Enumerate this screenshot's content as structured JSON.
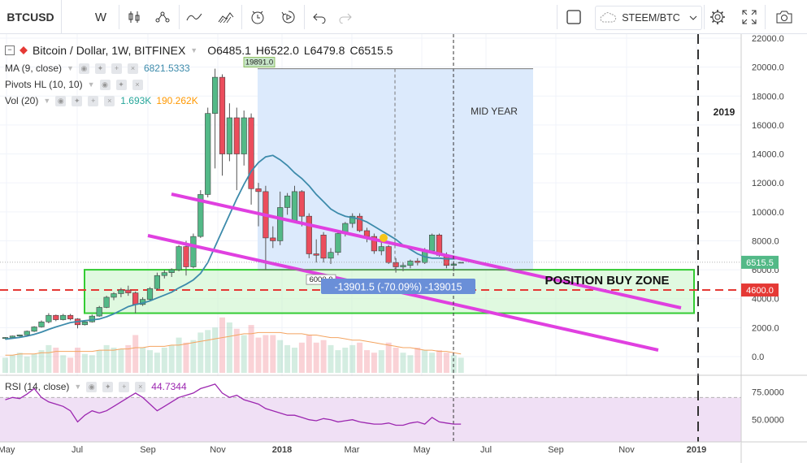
{
  "toolbar": {
    "symbol": "BTCUSD",
    "interval": "W",
    "compare_symbol": "STEEM/BTC",
    "icons": [
      "candles-icon",
      "indicators-icon",
      "line-icon",
      "area-icon",
      "alert-icon",
      "replay-icon",
      "undo-icon",
      "redo-icon",
      "square-icon",
      "compare-icon",
      "chevron-down-icon",
      "gear-icon",
      "fullscreen-icon",
      "camera-icon"
    ]
  },
  "legend": {
    "main_title": "Bitcoin / Dollar, 1W, BITFINEX",
    "ohlc": {
      "o": "O6485.1",
      "h": "H6522.0",
      "l": "L6479.8",
      "c": "C6515.5"
    },
    "ma_label": "MA (9, close)",
    "ma_value": "6821.5333",
    "pivots_label": "Pivots HL (10, 10)",
    "vol_label": "Vol (20)",
    "vol_value1": "1.693K",
    "vol_value2": "190.262K",
    "rsi_label": "RSI (14, close)",
    "rsi_value": "44.7344"
  },
  "colors": {
    "up": "#53b987",
    "down": "#eb4d5c",
    "ma": "#3d8bab",
    "channel": "#e040e0",
    "zone_fill": "#ccf5cc",
    "zone_border": "#33cc33",
    "range_fill": "#dceafc",
    "rsi": "#9c27b0",
    "rsi_band": "#ebd6f2",
    "support": "#e53935",
    "label_box": "#6a8fd8"
  },
  "chart_data": {
    "type": "candlestick",
    "ylim": [
      -500,
      22500
    ],
    "y_ticks": [
      0,
      2000,
      4000,
      6000,
      8000,
      10000,
      12000,
      14000,
      16000,
      18000,
      20000,
      22000
    ],
    "y_tick_labels": [
      "0.0",
      "2000.0",
      "4000.0",
      "6000.0",
      "8000.0",
      "10000.0",
      "12000.0",
      "14000.0",
      "16000.0",
      "18000.0",
      "20000.0",
      "22000.0"
    ],
    "x_tick_labels": [
      "May",
      "Jul",
      "Sep",
      "Nov",
      "2018",
      "Mar",
      "May",
      "Jul",
      "Sep",
      "Nov",
      "2019"
    ],
    "candles": [
      {
        "o": 1250,
        "h": 1350,
        "l": 1200,
        "c": 1320
      },
      {
        "o": 1320,
        "h": 1450,
        "l": 1300,
        "c": 1420
      },
      {
        "o": 1420,
        "h": 1520,
        "l": 1380,
        "c": 1500
      },
      {
        "o": 1500,
        "h": 1800,
        "l": 1480,
        "c": 1750
      },
      {
        "o": 1750,
        "h": 2100,
        "l": 1700,
        "c": 2050
      },
      {
        "o": 2050,
        "h": 2500,
        "l": 2000,
        "c": 2400
      },
      {
        "o": 2400,
        "h": 3000,
        "l": 2300,
        "c": 2850
      },
      {
        "o": 2850,
        "h": 2900,
        "l": 2450,
        "c": 2550
      },
      {
        "o": 2550,
        "h": 2950,
        "l": 2500,
        "c": 2850
      },
      {
        "o": 2850,
        "h": 2950,
        "l": 2500,
        "c": 2600
      },
      {
        "o": 2600,
        "h": 2650,
        "l": 1950,
        "c": 2200
      },
      {
        "o": 2200,
        "h": 2500,
        "l": 2150,
        "c": 2400
      },
      {
        "o": 2400,
        "h": 2900,
        "l": 2350,
        "c": 2800
      },
      {
        "o": 2800,
        "h": 3500,
        "l": 2750,
        "c": 3400
      },
      {
        "o": 3400,
        "h": 4200,
        "l": 3350,
        "c": 4100
      },
      {
        "o": 4100,
        "h": 4450,
        "l": 3900,
        "c": 4350
      },
      {
        "o": 4350,
        "h": 4750,
        "l": 4100,
        "c": 4600
      },
      {
        "o": 4600,
        "h": 4900,
        "l": 4200,
        "c": 4400
      },
      {
        "o": 4400,
        "h": 4500,
        "l": 3000,
        "c": 3600
      },
      {
        "o": 3600,
        "h": 4100,
        "l": 3500,
        "c": 3950
      },
      {
        "o": 3950,
        "h": 4800,
        "l": 3900,
        "c": 4700
      },
      {
        "o": 4700,
        "h": 5800,
        "l": 4600,
        "c": 5600
      },
      {
        "o": 5600,
        "h": 6000,
        "l": 5400,
        "c": 5800
      },
      {
        "o": 5800,
        "h": 6100,
        "l": 5500,
        "c": 6000
      },
      {
        "o": 6000,
        "h": 7700,
        "l": 5900,
        "c": 7600
      },
      {
        "o": 7600,
        "h": 8000,
        "l": 5600,
        "c": 6200
      },
      {
        "o": 6200,
        "h": 8500,
        "l": 6100,
        "c": 8300
      },
      {
        "o": 8300,
        "h": 11500,
        "l": 8200,
        "c": 11200
      },
      {
        "o": 11200,
        "h": 17200,
        "l": 11000,
        "c": 16800
      },
      {
        "o": 16800,
        "h": 19891,
        "l": 13000,
        "c": 19300
      },
      {
        "o": 19300,
        "h": 19500,
        "l": 12500,
        "c": 14000
      },
      {
        "o": 14000,
        "h": 17500,
        "l": 13500,
        "c": 16500
      },
      {
        "o": 16500,
        "h": 17200,
        "l": 11500,
        "c": 14000
      },
      {
        "o": 14000,
        "h": 17000,
        "l": 13200,
        "c": 16500
      },
      {
        "o": 16500,
        "h": 16800,
        "l": 10500,
        "c": 11600
      },
      {
        "o": 11600,
        "h": 12000,
        "l": 9000,
        "c": 11400
      },
      {
        "o": 11400,
        "h": 11800,
        "l": 6000,
        "c": 8200
      },
      {
        "o": 8200,
        "h": 9000,
        "l": 7500,
        "c": 8000
      },
      {
        "o": 8000,
        "h": 11400,
        "l": 7700,
        "c": 10300
      },
      {
        "o": 10300,
        "h": 11300,
        "l": 9800,
        "c": 11100
      },
      {
        "o": 9400,
        "h": 11800,
        "l": 9300,
        "c": 11400
      },
      {
        "o": 11400,
        "h": 11500,
        "l": 9000,
        "c": 9700
      },
      {
        "o": 9700,
        "h": 9900,
        "l": 6800,
        "c": 7100
      },
      {
        "o": 7100,
        "h": 8100,
        "l": 6500,
        "c": 7000
      },
      {
        "o": 8400,
        "h": 8600,
        "l": 6500,
        "c": 6800
      },
      {
        "o": 6800,
        "h": 7500,
        "l": 6400,
        "c": 7200
      },
      {
        "o": 7200,
        "h": 8600,
        "l": 7000,
        "c": 8500
      },
      {
        "o": 8500,
        "h": 9300,
        "l": 8300,
        "c": 9200
      },
      {
        "o": 9200,
        "h": 9900,
        "l": 8900,
        "c": 9700
      },
      {
        "o": 9700,
        "h": 9900,
        "l": 8600,
        "c": 8700
      },
      {
        "o": 8700,
        "h": 8900,
        "l": 7900,
        "c": 8300
      },
      {
        "o": 8300,
        "h": 8500,
        "l": 7100,
        "c": 7300
      },
      {
        "o": 7300,
        "h": 7900,
        "l": 7000,
        "c": 7600
      },
      {
        "o": 7600,
        "h": 7700,
        "l": 6400,
        "c": 6500
      },
      {
        "o": 6500,
        "h": 6800,
        "l": 5800,
        "c": 6200
      },
      {
        "o": 6200,
        "h": 6500,
        "l": 5900,
        "c": 6300
      },
      {
        "o": 6300,
        "h": 6700,
        "l": 6100,
        "c": 6600
      },
      {
        "o": 6600,
        "h": 6800,
        "l": 6300,
        "c": 6500
      },
      {
        "o": 6500,
        "h": 7500,
        "l": 6400,
        "c": 7300
      },
      {
        "o": 7300,
        "h": 8500,
        "l": 7200,
        "c": 8400
      },
      {
        "o": 8400,
        "h": 8500,
        "l": 6900,
        "c": 7000
      },
      {
        "o": 7000,
        "h": 7200,
        "l": 6100,
        "c": 6300
      },
      {
        "o": 6300,
        "h": 6600,
        "l": 5900,
        "c": 6400
      },
      {
        "o": 6485.1,
        "h": 6522.0,
        "l": 6479.8,
        "c": 6515.5
      }
    ],
    "ma_values": [
      1200,
      1260,
      1330,
      1420,
      1540,
      1690,
      1880,
      2050,
      2200,
      2350,
      2420,
      2480,
      2530,
      2600,
      2750,
      2950,
      3200,
      3450,
      3600,
      3700,
      3850,
      4050,
      4250,
      4450,
      4750,
      5000,
      5300,
      5750,
      6500,
      7600,
      8700,
      9800,
      10900,
      11900,
      12800,
      13400,
      13800,
      13900,
      13600,
      13200,
      12700,
      12300,
      11800,
      11200,
      10700,
      10200,
      9900,
      9700,
      9600,
      9500,
      9300,
      9000,
      8700,
      8400,
      8100,
      7700,
      7400,
      7100,
      6900,
      6800,
      6800,
      6750,
      6750,
      6800
    ],
    "annotations": {
      "high_label": "19891.0",
      "low_label": "6000.0",
      "range_label": "-13901.5 (-70.09%) -139015",
      "mid_year": "MID YEAR",
      "buy_zone": "POSITION BUY ZONE",
      "year_marker": "2019",
      "price_tag": "6515.5",
      "support_tag": "4600.0",
      "support_level": 4600,
      "buy_zone_range": [
        3000,
        6000
      ]
    },
    "volume_ylim": [
      0,
      60
    ],
    "volumes": [
      12,
      14,
      16,
      13,
      15,
      18,
      22,
      20,
      14,
      12,
      20,
      15,
      14,
      18,
      22,
      20,
      19,
      22,
      30,
      20,
      18,
      16,
      20,
      22,
      28,
      24,
      26,
      32,
      34,
      36,
      44,
      40,
      35,
      30,
      38,
      28,
      30,
      30,
      26,
      22,
      20,
      24,
      30,
      24,
      26,
      22,
      18,
      20,
      22,
      24,
      18,
      16,
      18,
      24,
      20,
      16,
      14,
      20,
      18,
      16,
      18,
      16,
      14,
      12
    ],
    "volume_ma": [
      14,
      14,
      15,
      15,
      15,
      16,
      16,
      17,
      17,
      17,
      17,
      17,
      17,
      18,
      18,
      18,
      19,
      19,
      20,
      20,
      21,
      21,
      21,
      22,
      22,
      23,
      24,
      25,
      26,
      27,
      28,
      29,
      30,
      31,
      31,
      32,
      32,
      32,
      32,
      31,
      31,
      31,
      30,
      30,
      29,
      28,
      28,
      27,
      26,
      26,
      25,
      24,
      23,
      22,
      21,
      20,
      20,
      19,
      18,
      18,
      17,
      17,
      16,
      15
    ],
    "rsi": {
      "ylim": [
        30,
        90
      ],
      "y_tick_labels": [
        "75.0000",
        "50.0000"
      ],
      "band": [
        30,
        70
      ],
      "values": [
        68,
        70,
        69,
        73,
        78,
        70,
        66,
        64,
        62,
        58,
        48,
        54,
        58,
        56,
        58,
        62,
        66,
        70,
        74,
        70,
        64,
        58,
        62,
        66,
        70,
        72,
        74,
        78,
        80,
        82,
        74,
        70,
        72,
        68,
        66,
        64,
        60,
        58,
        56,
        54,
        54,
        52,
        50,
        49,
        51,
        50,
        48,
        49,
        50,
        48,
        47,
        46,
        46,
        47,
        45,
        45,
        47,
        48,
        46,
        52,
        48,
        47,
        46,
        46
      ]
    }
  }
}
